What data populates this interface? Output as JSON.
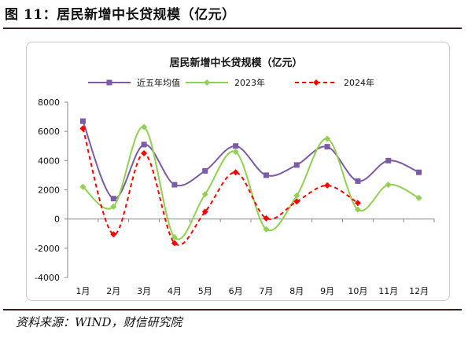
{
  "figure": {
    "title": "图 11：居民新增中长贷规模（亿元）",
    "source": "资料来源：WIND，财信研究院"
  },
  "chart_data": {
    "type": "line",
    "title": "居民新增中长贷规模（亿元）",
    "categories": [
      "1月",
      "2月",
      "3月",
      "4月",
      "5月",
      "6月",
      "7月",
      "8月",
      "9月",
      "10月",
      "11月",
      "12月"
    ],
    "ylim": [
      -4000,
      8000
    ],
    "yticks": [
      -4000,
      -2000,
      0,
      2000,
      4000,
      6000,
      8000
    ],
    "xlabel": "",
    "ylabel": "",
    "grid": false,
    "legend_position": "top",
    "series": [
      {
        "name": "近五年均值",
        "color": "#7b5aa6",
        "marker": "square",
        "dash": "solid",
        "values": [
          6700,
          1400,
          5100,
          2350,
          3300,
          5000,
          3000,
          3700,
          4950,
          2600,
          4000,
          3200
        ]
      },
      {
        "name": "2023年",
        "color": "#92d050",
        "marker": "diamond",
        "dash": "solid",
        "values": [
          2200,
          850,
          6300,
          -1250,
          1700,
          4600,
          -700,
          1600,
          5500,
          650,
          2350,
          1450
        ]
      },
      {
        "name": "2024年",
        "color": "#ff0000",
        "marker": "diamond",
        "dash": "dashed",
        "values": [
          6200,
          -1050,
          4500,
          -1650,
          500,
          3200,
          50,
          1200,
          2300,
          1100,
          null,
          null
        ]
      }
    ]
  }
}
